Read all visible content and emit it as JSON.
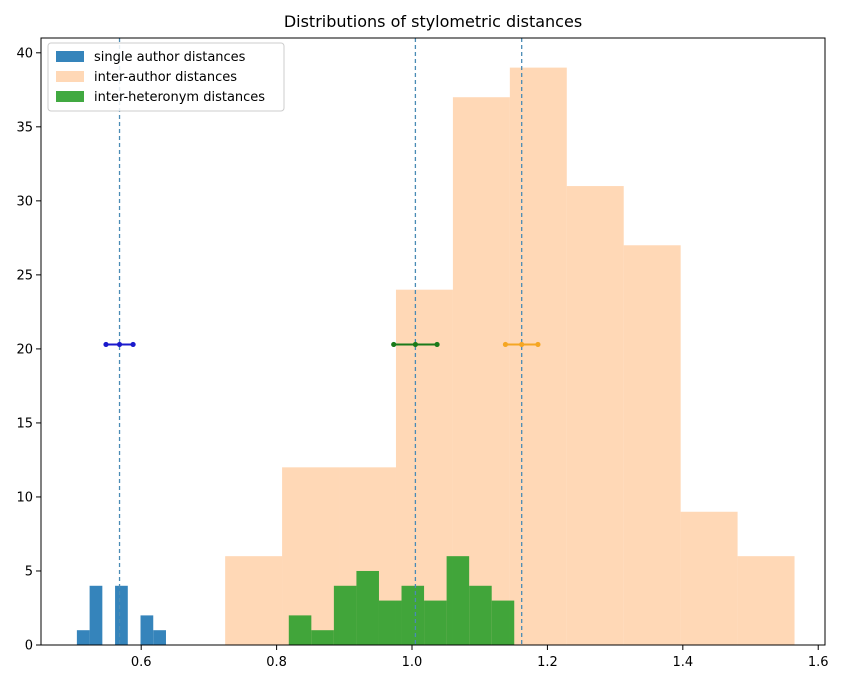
{
  "chart_data": {
    "type": "bar",
    "title": "Distributions of stylometric distances",
    "xlabel": "",
    "ylabel": "",
    "xlim": [
      0.452,
      1.61
    ],
    "ylim": [
      0,
      41
    ],
    "xticks": [
      0.6,
      0.8,
      1.0,
      1.2,
      1.4,
      1.6
    ],
    "xtick_labels": [
      "0.6",
      "0.8",
      "1.0",
      "1.2",
      "1.4",
      "1.6"
    ],
    "yticks": [
      0,
      5,
      10,
      15,
      20,
      25,
      30,
      35,
      40
    ],
    "ytick_labels": [
      "0",
      "5",
      "10",
      "15",
      "20",
      "25",
      "30",
      "35",
      "40"
    ],
    "legend_position": "top-left",
    "series": [
      {
        "name": "single author distances",
        "color": "#1f77b4",
        "alpha": 0.9,
        "bin_edges": [
          0.505,
          0.5238,
          0.5426,
          0.5614,
          0.5802,
          0.599,
          0.6178,
          0.6366
        ],
        "counts": [
          1,
          4,
          0,
          4,
          0,
          2,
          1
        ]
      },
      {
        "name": "inter-author distances",
        "color": "#ffbe86",
        "alpha": 0.6,
        "bin_edges": [
          0.724,
          0.8081,
          0.8922,
          0.9763,
          1.0604,
          1.1445,
          1.2286,
          1.3127,
          1.3968,
          1.4809,
          1.565
        ],
        "counts": [
          6,
          12,
          12,
          24,
          37,
          39,
          31,
          27,
          9,
          6
        ]
      },
      {
        "name": "inter-heteronym distances",
        "color": "#2ca02c",
        "alpha": 0.9,
        "bin_edges": [
          0.818,
          0.8513,
          0.8846,
          0.9179,
          0.9512,
          0.9845,
          1.0178,
          1.0511,
          1.0844,
          1.1177,
          1.151
        ],
        "counts": [
          2,
          1,
          4,
          5,
          3,
          4,
          3,
          6,
          4,
          3
        ]
      }
    ],
    "mean_lines": [
      {
        "series": "single author distances",
        "x": 0.568,
        "color": "#4a8bb5"
      },
      {
        "series": "inter-heteronym distances",
        "x": 1.005,
        "color": "#4a8bb5"
      },
      {
        "series": "inter-author distances",
        "x": 1.162,
        "color": "#4a8bb5"
      }
    ],
    "error_bars": [
      {
        "series": "single author distances",
        "center": 0.568,
        "low": 0.548,
        "high": 0.588,
        "y": 20.3,
        "color": "#1a1acc"
      },
      {
        "series": "inter-heteronym distances",
        "center": 1.005,
        "low": 0.973,
        "high": 1.037,
        "y": 20.3,
        "color": "#1a7a1a"
      },
      {
        "series": "inter-author distances",
        "center": 1.162,
        "low": 1.138,
        "high": 1.186,
        "y": 20.3,
        "color": "#f5a623"
      }
    ]
  }
}
